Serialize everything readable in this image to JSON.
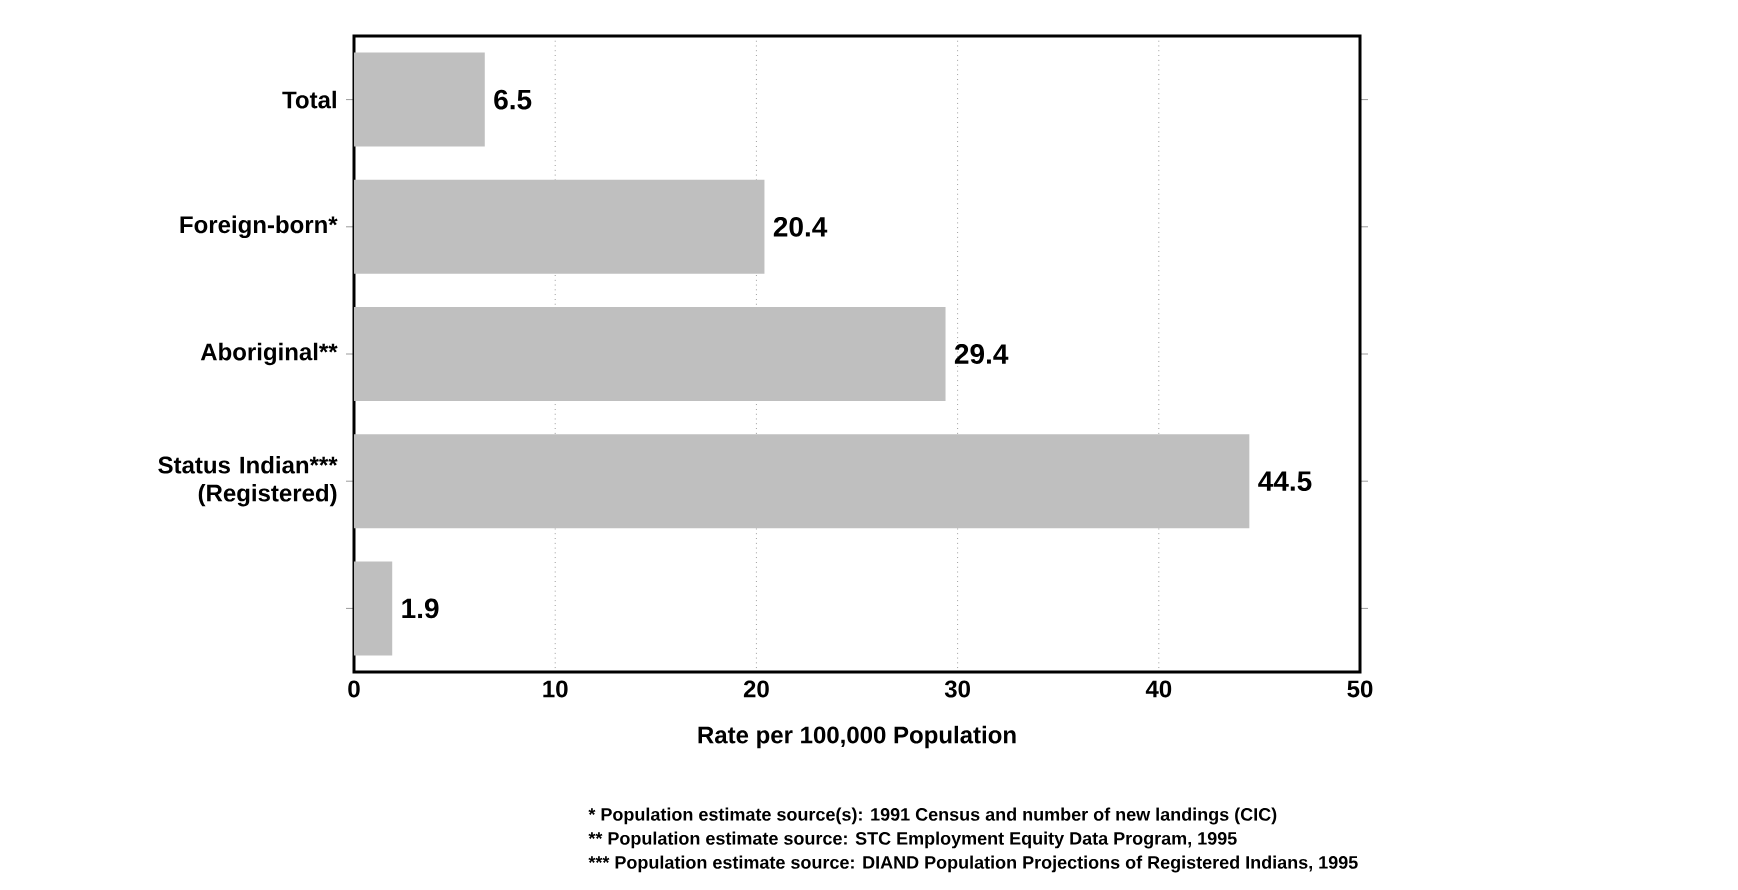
{
  "chart_data": {
    "type": "bar",
    "orientation": "horizontal",
    "categories": [
      "Total",
      "Foreign-born*",
      "Aboriginal**",
      "Status Indian*** (Registered)",
      null
    ],
    "values": [
      6.5,
      20.4,
      29.4,
      44.5,
      1.9
    ],
    "color": "#bfbfbf",
    "xlabel": "Rate per 100,000 Population",
    "xlim": [
      0,
      50
    ],
    "xticks": [
      0,
      10,
      20,
      30,
      40,
      50
    ],
    "grid": "x",
    "data_labels": true,
    "annotations": [
      "*    Population estimate source(s): 1991 Census and number of new landings (CIC)",
      "**   Population estimate source: STC Employment Equity Data Program, 1995",
      "***  Population estimate source: DIAND Population Projections of Registered Indians, 1995"
    ]
  }
}
